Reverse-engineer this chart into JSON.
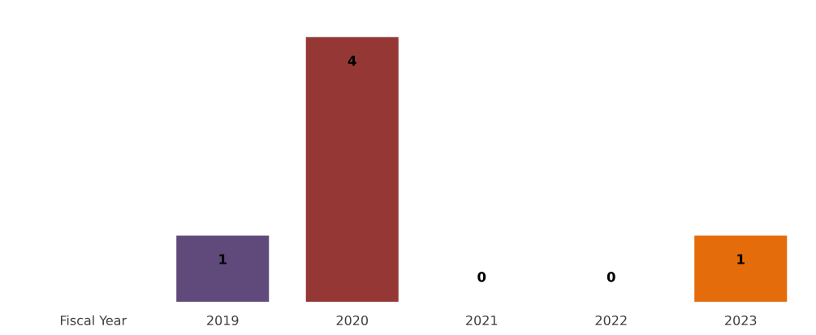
{
  "chart_data": {
    "type": "bar",
    "categories": [
      "Fiscal Year",
      "2019",
      "2020",
      "2021",
      "2022",
      "2023"
    ],
    "values": [
      null,
      1,
      4,
      0,
      0,
      1
    ],
    "colors": [
      "#ffffff",
      "#604a7b",
      "#953735",
      "#7f7f7f",
      "#7f7f7f",
      "#e46c0a"
    ],
    "data_labels": true,
    "grid": false,
    "legend": false
  }
}
